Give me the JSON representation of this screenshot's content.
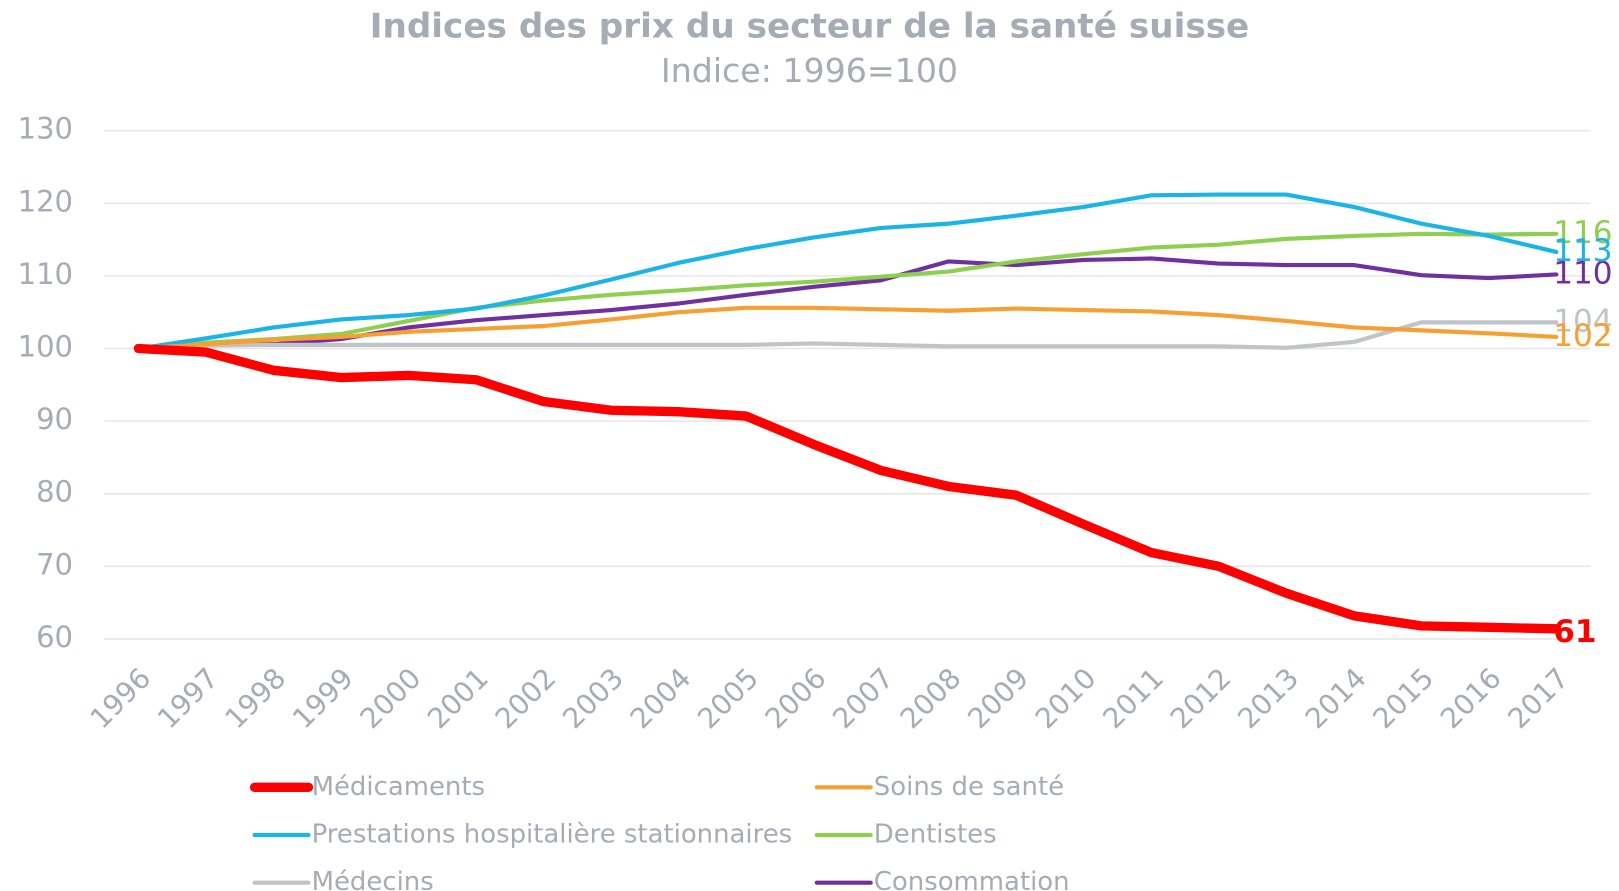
{
  "chart_data": {
    "type": "line",
    "title": "Indices des prix du secteur de la santé suisse",
    "subtitle": "Indice: 1996=100",
    "categories": [
      "1996",
      "1997",
      "1998",
      "1999",
      "2000",
      "2001",
      "2002",
      "2003",
      "2004",
      "2005",
      "2006",
      "2007",
      "2008",
      "2009",
      "2010",
      "2011",
      "2012",
      "2013",
      "2014",
      "2015",
      "2016",
      "2017"
    ],
    "ylim": [
      60,
      130
    ],
    "yticks": [
      60,
      70,
      80,
      90,
      100,
      110,
      120,
      130
    ],
    "grid": true,
    "legend": "bottom",
    "series": [
      {
        "name": "Médicaments",
        "color": "#ff0000",
        "values": [
          100,
          99.5,
          97,
          96,
          96.3,
          95.7,
          92.7,
          91.5,
          91.3,
          90.7,
          86.8,
          83.2,
          81,
          79.8,
          75.8,
          71.9,
          70,
          66.3,
          63.2,
          61.8,
          61.6,
          61.4
        ],
        "value_labels": [
          null,
          null,
          null,
          null,
          null,
          null,
          null,
          null,
          null,
          null,
          null,
          null,
          null,
          null,
          null,
          null,
          null,
          null,
          null,
          null,
          null,
          "61"
        ]
      },
      {
        "name": "Soins de santé",
        "color": "#f7a031",
        "values": [
          100,
          100.6,
          101.2,
          101.6,
          102.3,
          102.7,
          103.1,
          104,
          105,
          105.6,
          105.6,
          105.4,
          105.2,
          105.5,
          105.3,
          105.1,
          104.6,
          103.8,
          102.9,
          102.5,
          102.1,
          101.6
        ],
        "value_labels": [
          null,
          null,
          null,
          null,
          null,
          null,
          null,
          null,
          null,
          null,
          null,
          null,
          null,
          null,
          null,
          null,
          null,
          null,
          null,
          null,
          null,
          "102"
        ]
      },
      {
        "name": "Prestations hospitalière stationnaires",
        "color": "#1ab4e8",
        "values": [
          100,
          101.4,
          102.9,
          104,
          104.6,
          105.5,
          107.3,
          109.5,
          111.8,
          113.7,
          115.3,
          116.6,
          117.2,
          118.3,
          119.5,
          121.1,
          121.2,
          121.2,
          119.5,
          117.2,
          115.5,
          113.3
        ],
        "value_labels": [
          null,
          null,
          null,
          null,
          null,
          null,
          null,
          null,
          null,
          null,
          null,
          null,
          null,
          null,
          null,
          null,
          null,
          null,
          null,
          null,
          null,
          "113"
        ]
      },
      {
        "name": "Dentistes",
        "color": "#8fcf50",
        "values": [
          100,
          100.8,
          101.3,
          102,
          103.8,
          105.6,
          106.6,
          107.4,
          108,
          108.7,
          109.2,
          109.9,
          110.6,
          112,
          113,
          113.9,
          114.3,
          115.1,
          115.5,
          115.8,
          115.7,
          115.8
        ],
        "value_labels": [
          null,
          null,
          null,
          null,
          null,
          null,
          null,
          null,
          null,
          null,
          null,
          null,
          null,
          null,
          null,
          null,
          null,
          null,
          null,
          null,
          null,
          "116"
        ]
      },
      {
        "name": "Médecins",
        "color": "#c0c3c8",
        "values": [
          100,
          100.4,
          100.5,
          100.5,
          100.5,
          100.5,
          100.5,
          100.5,
          100.5,
          100.5,
          100.7,
          100.5,
          100.3,
          100.3,
          100.3,
          100.3,
          100.3,
          100.1,
          100.9,
          103.6,
          103.6,
          103.6
        ],
        "value_labels": [
          null,
          null,
          null,
          null,
          null,
          null,
          null,
          null,
          null,
          null,
          null,
          null,
          null,
          null,
          null,
          null,
          null,
          null,
          null,
          null,
          null,
          "104"
        ]
      },
      {
        "name": "Consommation",
        "color": "#7030a0",
        "values": [
          100,
          100.6,
          100.6,
          101.3,
          102.9,
          103.9,
          104.6,
          105.3,
          106.2,
          107.4,
          108.5,
          109.4,
          112,
          111.5,
          112.2,
          112.4,
          111.7,
          111.5,
          111.5,
          110.1,
          109.7,
          110.2
        ],
        "value_labels": [
          null,
          null,
          null,
          null,
          null,
          null,
          null,
          null,
          null,
          null,
          null,
          null,
          null,
          null,
          null,
          null,
          null,
          null,
          null,
          null,
          null,
          "110"
        ]
      }
    ]
  }
}
